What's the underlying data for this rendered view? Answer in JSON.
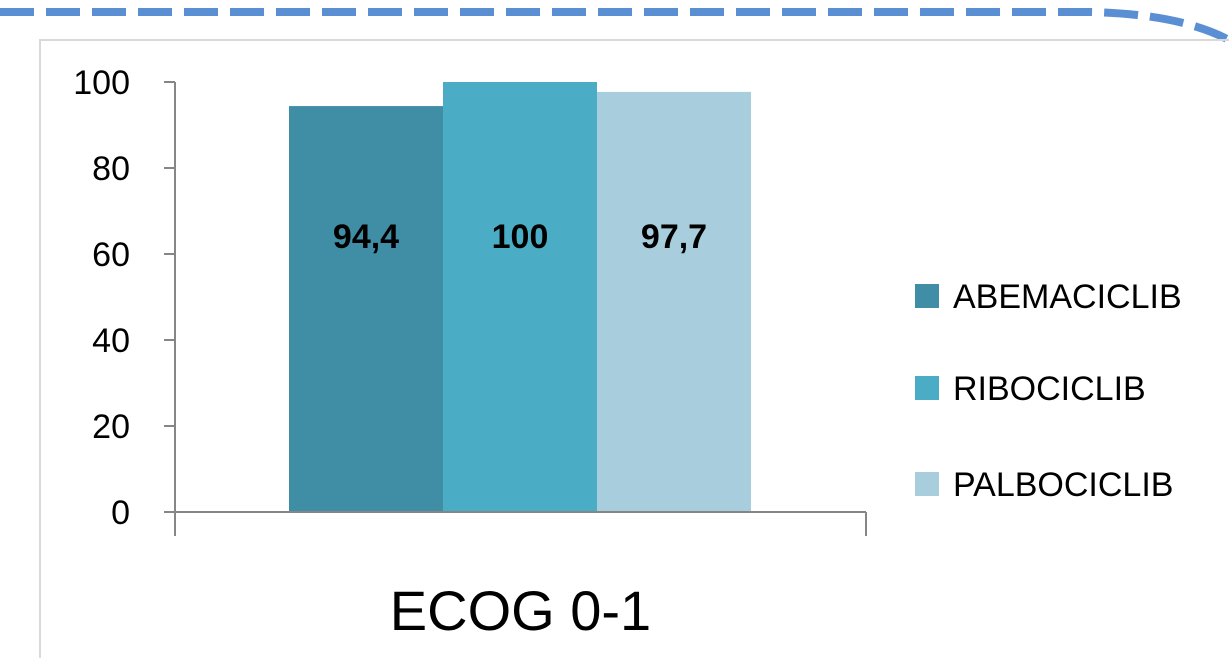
{
  "chart_data": {
    "type": "bar",
    "categories": [
      "ECOG 0-1"
    ],
    "series": [
      {
        "name": "ABEMACICLIB",
        "values": [
          94.4
        ],
        "label": "94,4",
        "color": "#3f8ea5"
      },
      {
        "name": "RIBOCICLIB",
        "values": [
          100
        ],
        "label": "100",
        "color": "#4bacc6"
      },
      {
        "name": "PALBOCICLIB",
        "values": [
          97.7
        ],
        "label": "97,7",
        "color": "#a8cedd"
      }
    ],
    "ylim": [
      0,
      100
    ],
    "yticks": [
      "0",
      "20",
      "40",
      "60",
      "80",
      "100"
    ],
    "grid": false,
    "legend_position": "right"
  },
  "frame": {
    "border_color": "#d9d9d9",
    "dashed_border_color": "#5b8fd3"
  }
}
